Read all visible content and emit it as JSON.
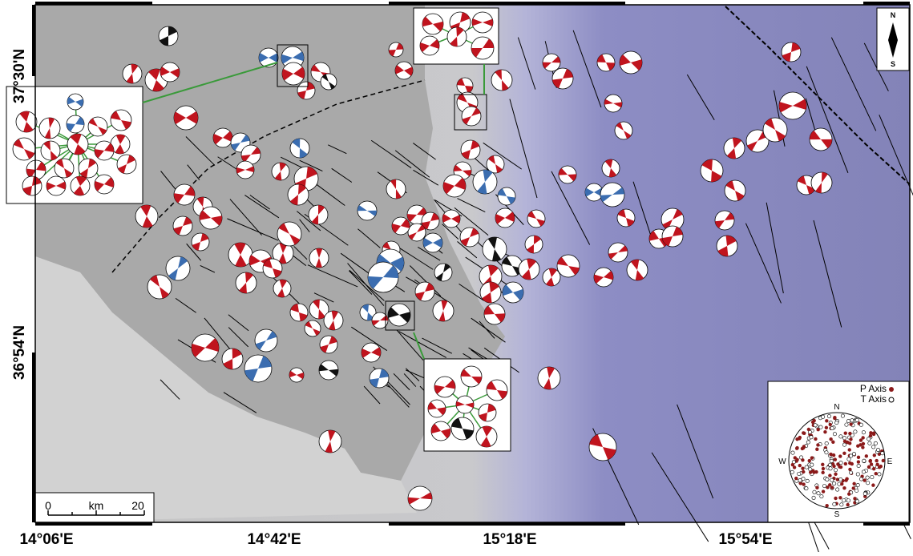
{
  "map": {
    "longitude_labels": [
      "14°06'E",
      "14°42'E",
      "15°18'E",
      "15°54'E"
    ],
    "latitude_labels": [
      "37°30'N",
      "36°54'N"
    ],
    "scale_bar": {
      "start": "0",
      "unit": "km",
      "end": "20"
    },
    "compass": {
      "north": "N",
      "south": "S"
    },
    "stereonet": {
      "legend": [
        "P Axis",
        "T Axis"
      ],
      "directions": [
        "N",
        "E",
        "S",
        "W"
      ]
    }
  }
}
